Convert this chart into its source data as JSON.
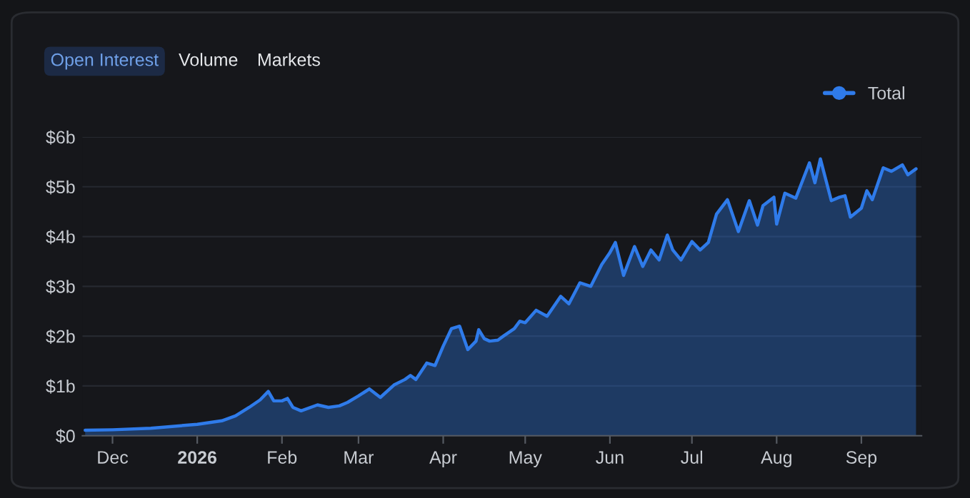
{
  "chart_data": {
    "type": "area",
    "annotations": [
      "Open Interest",
      "Volume",
      "Markets"
    ],
    "x": [
      "2025-11-21",
      "2025-12-01",
      "2025-12-15",
      "2026-01-01",
      "2026-01-10",
      "2026-01-15",
      "2026-01-20",
      "2026-01-24",
      "2026-01-27",
      "2026-01-29",
      "2026-02-01",
      "2026-02-03",
      "2026-02-05",
      "2026-02-08",
      "2026-02-14",
      "2026-02-18",
      "2026-02-22",
      "2026-02-25",
      "2026-03-01",
      "2026-03-05",
      "2026-03-09",
      "2026-03-14",
      "2026-03-18",
      "2026-03-20",
      "2026-03-22",
      "2026-03-26",
      "2026-03-29",
      "2026-04-01",
      "2026-04-04",
      "2026-04-07",
      "2026-04-10",
      "2026-04-13",
      "2026-04-14",
      "2026-04-16",
      "2026-04-18",
      "2026-04-21",
      "2026-04-23",
      "2026-04-27",
      "2026-04-29",
      "2026-05-01",
      "2026-05-05",
      "2026-05-09",
      "2026-05-14",
      "2026-05-17",
      "2026-05-21",
      "2026-05-25",
      "2026-05-29",
      "2026-06-01",
      "2026-06-03",
      "2026-06-06",
      "2026-06-10",
      "2026-06-13",
      "2026-06-16",
      "2026-06-19",
      "2026-06-22",
      "2026-06-24",
      "2026-06-27",
      "2026-07-01",
      "2026-07-04",
      "2026-07-07",
      "2026-07-10",
      "2026-07-14",
      "2026-07-18",
      "2026-07-22",
      "2026-07-25",
      "2026-07-27",
      "2026-07-31",
      "2026-08-01",
      "2026-08-04",
      "2026-08-08",
      "2026-08-13",
      "2026-08-15",
      "2026-08-17",
      "2026-08-21",
      "2026-08-24",
      "2026-08-26",
      "2026-08-28",
      "2026-09-01",
      "2026-09-03",
      "2026-09-05",
      "2026-09-09",
      "2026-09-12",
      "2026-09-16",
      "2026-09-18",
      "2026-09-21"
    ],
    "series": [
      {
        "name": "Total",
        "color": "#2f7bea",
        "values": [
          0.11,
          0.12,
          0.15,
          0.23,
          0.3,
          0.4,
          0.57,
          0.72,
          0.89,
          0.7,
          0.7,
          0.75,
          0.57,
          0.5,
          0.62,
          0.57,
          0.6,
          0.67,
          0.8,
          0.94,
          0.77,
          1.02,
          1.13,
          1.21,
          1.13,
          1.46,
          1.41,
          1.8,
          2.15,
          2.2,
          1.73,
          1.9,
          2.13,
          1.95,
          1.9,
          1.92,
          2.0,
          2.15,
          2.3,
          2.27,
          2.52,
          2.4,
          2.8,
          2.65,
          3.07,
          3.0,
          3.44,
          3.68,
          3.88,
          3.22,
          3.8,
          3.4,
          3.73,
          3.53,
          4.03,
          3.73,
          3.53,
          3.9,
          3.73,
          3.88,
          4.45,
          4.74,
          4.1,
          4.72,
          4.23,
          4.62,
          4.79,
          4.25,
          4.87,
          4.77,
          5.48,
          5.08,
          5.56,
          4.72,
          4.79,
          4.82,
          4.39,
          4.57,
          4.92,
          4.74,
          5.38,
          5.31,
          5.44,
          5.24,
          5.36
        ]
      }
    ],
    "xlim": [
      "2025-11-20",
      "2026-09-23"
    ],
    "xticks": [
      {
        "value": "2025-12-01",
        "label": "Dec"
      },
      {
        "value": "2026-01-01",
        "label": "2026"
      },
      {
        "value": "2026-02-01",
        "label": "Feb"
      },
      {
        "value": "2026-03-01",
        "label": "Mar"
      },
      {
        "value": "2026-04-01",
        "label": "Apr"
      },
      {
        "value": "2026-05-01",
        "label": "May"
      },
      {
        "value": "2026-06-01",
        "label": "Jun"
      },
      {
        "value": "2026-07-01",
        "label": "Jul"
      },
      {
        "value": "2026-08-01",
        "label": "Aug"
      },
      {
        "value": "2026-09-01",
        "label": "Sep"
      }
    ],
    "ylim": [
      0,
      6
    ],
    "yticks": [
      {
        "value": 0,
        "label": "$0"
      },
      {
        "value": 1,
        "label": "$1b"
      },
      {
        "value": 2,
        "label": "$2b"
      },
      {
        "value": 3,
        "label": "$3b"
      },
      {
        "value": 4,
        "label": "$4b"
      },
      {
        "value": 5,
        "label": "$5b"
      },
      {
        "value": 6,
        "label": "$6b"
      }
    ],
    "grid": "y",
    "legend": "top right"
  }
}
